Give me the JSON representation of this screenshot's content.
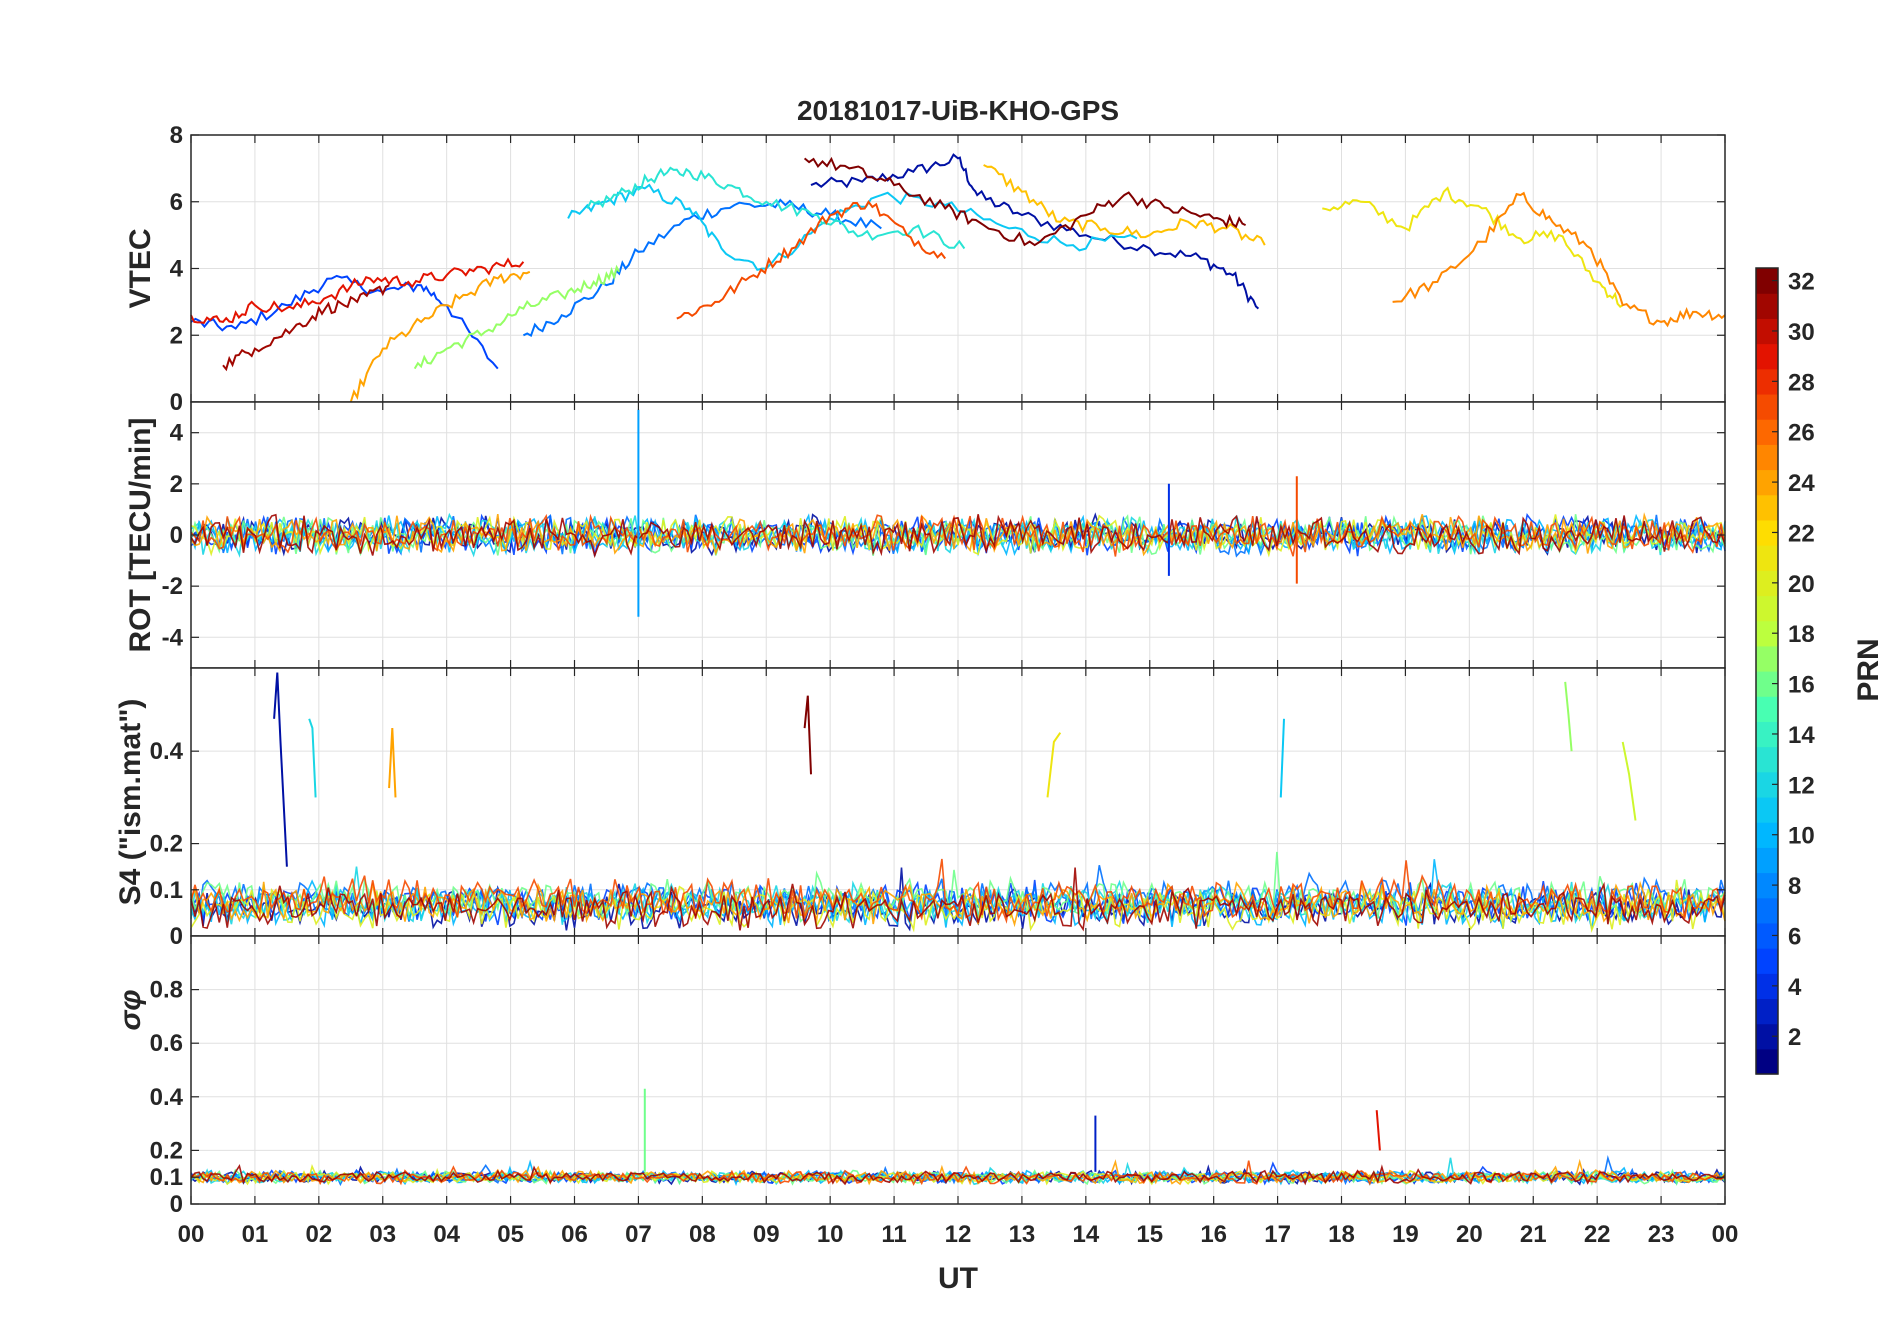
{
  "figure": {
    "title": "20181017-UiB-KHO-GPS"
  },
  "chart_data": [
    {
      "type": "line",
      "panel": "vtec",
      "title": "20181017-UiB-KHO-GPS",
      "xlabel": "",
      "ylabel": "VTEC",
      "xlim": [
        0,
        24
      ],
      "ylim": [
        0,
        8
      ],
      "yticks": [
        0,
        2,
        4,
        6,
        8
      ],
      "ytick_labels": [
        "0",
        "2",
        "4",
        "6",
        "8"
      ],
      "grid": true,
      "series": [
        {
          "name": "PRN 2",
          "prn": 2,
          "x": [
            9.7,
            10.5,
            11.3,
            12.0,
            12.3,
            13.0,
            14.0,
            15.0,
            15.8,
            16.3,
            16.7
          ],
          "y": [
            6.5,
            6.6,
            6.9,
            7.3,
            6.2,
            5.6,
            5.0,
            4.6,
            4.3,
            3.8,
            2.8
          ]
        },
        {
          "name": "PRN 5",
          "prn": 5,
          "x": [
            0.0,
            0.7,
            1.5,
            2.2,
            3.0,
            3.6,
            4.0,
            4.8
          ],
          "y": [
            2.4,
            2.2,
            2.9,
            3.7,
            3.3,
            3.5,
            2.9,
            1.0
          ]
        },
        {
          "name": "PRN 7",
          "prn": 7,
          "x": [
            5.2,
            5.8,
            6.5,
            7.0,
            7.8,
            8.5,
            9.3,
            10.0,
            10.8
          ],
          "y": [
            2.0,
            2.6,
            3.5,
            4.5,
            5.5,
            5.9,
            5.9,
            5.6,
            5.2
          ]
        },
        {
          "name": "PRN 11",
          "prn": 11,
          "x": [
            5.9,
            6.5,
            7.1,
            7.8,
            8.3,
            9.0,
            10.0,
            10.8,
            11.8,
            12.8,
            13.8,
            14.8
          ],
          "y": [
            5.5,
            6.0,
            6.4,
            5.8,
            4.6,
            4.0,
            5.5,
            6.2,
            5.9,
            5.2,
            4.7,
            4.9
          ]
        },
        {
          "name": "PRN 13",
          "prn": 13,
          "x": [
            6.2,
            6.8,
            7.3,
            7.8,
            8.4,
            9.0,
            9.8,
            10.5,
            11.3,
            12.1
          ],
          "y": [
            5.8,
            6.3,
            6.8,
            6.9,
            6.5,
            6.0,
            5.6,
            5.0,
            5.2,
            4.6
          ]
        },
        {
          "name": "PRN 17",
          "prn": 17,
          "x": [
            3.5,
            4.0,
            4.6,
            5.2,
            5.8,
            6.3,
            6.7
          ],
          "y": [
            1.0,
            1.6,
            2.1,
            2.8,
            3.2,
            3.6,
            3.9
          ]
        },
        {
          "name": "PRN 21",
          "prn": 21,
          "x": [
            17.7,
            18.3,
            19.0,
            19.6,
            20.2,
            20.8,
            21.4,
            22.0,
            22.4
          ],
          "y": [
            5.8,
            6.0,
            5.2,
            6.3,
            5.8,
            4.9,
            5.0,
            3.6,
            2.9
          ]
        },
        {
          "name": "PRN 23",
          "prn": 23,
          "x": [
            12.4,
            13.0,
            13.6,
            14.3,
            15.0,
            15.6,
            16.2,
            16.8
          ],
          "y": [
            7.1,
            6.3,
            5.4,
            5.2,
            5.0,
            5.4,
            5.2,
            4.7
          ]
        },
        {
          "name": "PRN 24",
          "prn": 24,
          "x": [
            2.5,
            3.0,
            3.6,
            4.2,
            4.8,
            5.3
          ],
          "y": [
            0.0,
            1.6,
            2.4,
            3.1,
            3.7,
            3.9
          ]
        },
        {
          "name": "PRN 25",
          "prn": 25,
          "x": [
            18.8,
            19.5,
            20.2,
            20.8,
            21.3,
            21.9,
            22.4,
            23.0,
            23.5,
            24.0
          ],
          "y": [
            3.0,
            3.6,
            4.8,
            6.2,
            5.4,
            4.6,
            2.9,
            2.4,
            2.7,
            2.6
          ]
        },
        {
          "name": "PRN 27",
          "prn": 27,
          "x": [
            7.6,
            8.2,
            8.8,
            9.4,
            10.0,
            10.6,
            11.2,
            11.8
          ],
          "y": [
            2.5,
            3.0,
            3.8,
            4.6,
            5.6,
            6.0,
            5.0,
            4.3
          ]
        },
        {
          "name": "PRN 29",
          "prn": 29,
          "x": [
            0.0,
            0.5,
            1.0,
            1.6,
            2.2,
            2.8,
            3.4,
            4.0,
            4.6,
            5.2
          ],
          "y": [
            2.6,
            2.4,
            2.9,
            2.8,
            3.2,
            3.7,
            3.6,
            3.8,
            4.0,
            4.2
          ]
        },
        {
          "name": "PRN 31",
          "prn": 31,
          "x": [
            0.5,
            1.0,
            1.6,
            2.1,
            2.6,
            3.1
          ],
          "y": [
            1.1,
            1.6,
            2.2,
            2.8,
            3.0,
            3.5
          ]
        },
        {
          "name": "PRN 32",
          "prn": 32,
          "x": [
            9.6,
            10.3,
            11.0,
            11.8,
            12.4,
            13.2,
            14.0,
            14.6,
            15.3,
            16.0,
            16.5
          ],
          "y": [
            7.3,
            7.0,
            6.5,
            5.8,
            5.3,
            4.7,
            5.6,
            6.2,
            5.8,
            5.5,
            5.3
          ]
        }
      ]
    },
    {
      "type": "line",
      "panel": "rot",
      "xlabel": "",
      "ylabel": "ROT [TECU/min]",
      "xlim": [
        0,
        24
      ],
      "ylim": [
        -5.2,
        5.2
      ],
      "yticks": [
        -4,
        -2,
        0,
        2,
        4
      ],
      "ytick_labels": [
        "-4",
        "-2",
        "0",
        "2",
        "4"
      ],
      "grid": true,
      "series": [
        {
          "name": "PRN 9 spike",
          "prn": 9,
          "x": [
            7.0,
            7.0,
            7.0
          ],
          "y": [
            0.0,
            4.9,
            -3.2
          ]
        },
        {
          "name": "PRN 27 spike",
          "prn": 27,
          "x": [
            17.3,
            17.3
          ],
          "y": [
            2.3,
            -1.9
          ]
        },
        {
          "name": "PRN 4 spike",
          "prn": 4,
          "x": [
            15.3,
            15.3
          ],
          "y": [
            2.0,
            -1.6
          ]
        }
      ]
    },
    {
      "type": "line",
      "panel": "s4",
      "xlabel": "",
      "ylabel": "S4 (\"ism.mat\")",
      "xlim": [
        0,
        24
      ],
      "ylim": [
        0,
        0.58
      ],
      "yticks": [
        0,
        0.1,
        0.2,
        0.4
      ],
      "ytick_labels": [
        "0",
        "0.1",
        "0.2",
        "0.4"
      ],
      "grid": true,
      "series": [
        {
          "name": "PRN 2 peak",
          "prn": 2,
          "x": [
            1.3,
            1.35,
            1.4,
            1.5
          ],
          "y": [
            0.47,
            0.57,
            0.42,
            0.15
          ]
        },
        {
          "name": "PRN 12 peak",
          "prn": 12,
          "x": [
            1.85,
            1.9,
            1.95
          ],
          "y": [
            0.47,
            0.45,
            0.3
          ]
        },
        {
          "name": "PRN 24 peak",
          "prn": 24,
          "x": [
            3.1,
            3.15,
            3.2
          ],
          "y": [
            0.32,
            0.45,
            0.3
          ]
        },
        {
          "name": "PRN 32 peak",
          "prn": 32,
          "x": [
            9.6,
            9.65,
            9.7
          ],
          "y": [
            0.45,
            0.52,
            0.35
          ]
        },
        {
          "name": "PRN 21 peak",
          "prn": 21,
          "x": [
            13.4,
            13.5,
            13.6
          ],
          "y": [
            0.3,
            0.42,
            0.44
          ]
        },
        {
          "name": "PRN 11 peak",
          "prn": 11,
          "x": [
            17.05,
            17.1
          ],
          "y": [
            0.3,
            0.47
          ]
        },
        {
          "name": "PRN 17 peak",
          "prn": 17,
          "x": [
            21.5,
            21.55,
            21.6
          ],
          "y": [
            0.55,
            0.48,
            0.4
          ]
        },
        {
          "name": "PRN 19 peak",
          "prn": 19,
          "x": [
            22.4,
            22.5,
            22.6
          ],
          "y": [
            0.42,
            0.35,
            0.25
          ]
        }
      ]
    },
    {
      "type": "line",
      "panel": "sigma_phi",
      "xlabel": "UT",
      "ylabel": "σφ",
      "xlim": [
        0,
        24
      ],
      "ylim": [
        0,
        1
      ],
      "yticks": [
        0,
        0.1,
        0.2,
        0.4,
        0.6,
        0.8
      ],
      "ytick_labels": [
        "0",
        "0.1",
        "0.2",
        "0.4",
        "0.6",
        "0.8"
      ],
      "xtick_labels": [
        "00",
        "01",
        "02",
        "03",
        "04",
        "05",
        "06",
        "07",
        "08",
        "09",
        "10",
        "11",
        "12",
        "13",
        "14",
        "15",
        "16",
        "17",
        "18",
        "19",
        "20",
        "21",
        "22",
        "23",
        "00"
      ],
      "grid": true,
      "series": [
        {
          "name": "PRN 16 peak",
          "prn": 16,
          "x": [
            7.1,
            7.1
          ],
          "y": [
            0.12,
            0.43
          ]
        },
        {
          "name": "PRN 3 peak",
          "prn": 3,
          "x": [
            14.15,
            14.15
          ],
          "y": [
            0.12,
            0.33
          ]
        },
        {
          "name": "PRN 29 peak",
          "prn": 29,
          "x": [
            18.55,
            18.6
          ],
          "y": [
            0.35,
            0.2
          ]
        }
      ]
    }
  ],
  "colorbar": {
    "label": "PRN",
    "min": 1,
    "max": 32,
    "ticks": [
      2,
      4,
      6,
      8,
      10,
      12,
      14,
      16,
      18,
      20,
      22,
      24,
      26,
      28,
      30,
      32
    ],
    "tick_labels": [
      "2",
      "4",
      "6",
      "8",
      "10",
      "12",
      "14",
      "16",
      "18",
      "20",
      "22",
      "24",
      "26",
      "28",
      "30",
      "32"
    ]
  }
}
